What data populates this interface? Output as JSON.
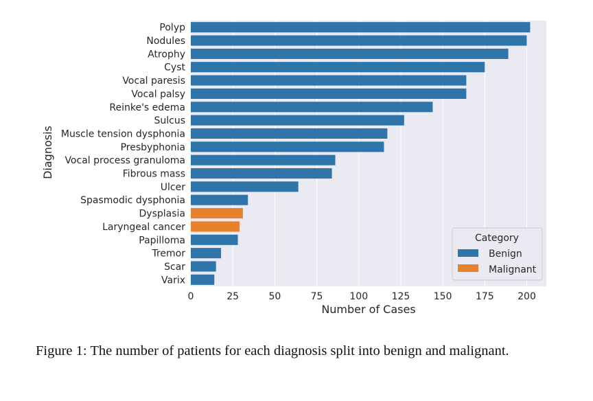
{
  "chart_data": {
    "type": "bar",
    "orientation": "horizontal",
    "categories": [
      "Polyp",
      "Nodules",
      "Atrophy",
      "Cyst",
      "Vocal paresis",
      "Vocal palsy",
      "Reinke's edema",
      "Sulcus",
      "Muscle tension dysphonia",
      "Presbyphonia",
      "Vocal process granuloma",
      "Fibrous mass",
      "Ulcer",
      "Spasmodic dysphonia",
      "Dysplasia",
      "Laryngeal cancer",
      "Papilloma",
      "Tremor",
      "Scar",
      "Varix"
    ],
    "values": [
      202,
      200,
      189,
      175,
      164,
      164,
      144,
      127,
      117,
      115,
      86,
      84,
      64,
      34,
      31,
      29,
      28,
      18,
      15,
      14
    ],
    "category_of_bar": [
      "Benign",
      "Benign",
      "Benign",
      "Benign",
      "Benign",
      "Benign",
      "Benign",
      "Benign",
      "Benign",
      "Benign",
      "Benign",
      "Benign",
      "Benign",
      "Benign",
      "Malignant",
      "Malignant",
      "Benign",
      "Benign",
      "Benign",
      "Benign"
    ],
    "xlabel": "Number of Cases",
    "ylabel": "Diagnosis",
    "xlim": [
      0,
      212
    ],
    "xticks": [
      0,
      25,
      50,
      75,
      100,
      125,
      150,
      175,
      200
    ],
    "grid": true,
    "legend": {
      "title": "Category",
      "placement": "bottom-right",
      "entries": [
        {
          "name": "Benign",
          "color": "#2f75aa"
        },
        {
          "name": "Malignant",
          "color": "#e8812c"
        }
      ]
    },
    "colors": {
      "Benign": "#2f75aa",
      "Malignant": "#e8812c",
      "background": "#eaeaf2",
      "grid": "#ffffff"
    }
  },
  "caption": "Figure 1: The number of patients for each diagnosis split into benign and malignant."
}
